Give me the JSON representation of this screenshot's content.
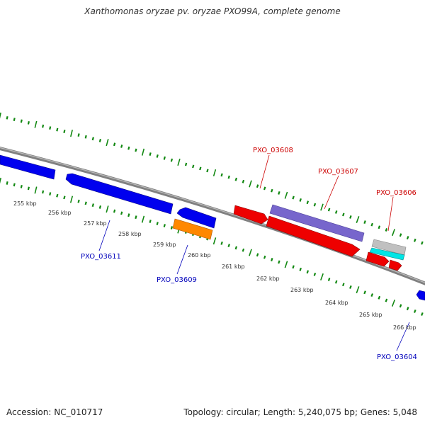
{
  "header": {
    "title": "Xanthomonas oryzae pv. oryzae PXO99A, complete genome"
  },
  "footer": {
    "accession": "Accession: NC_010717",
    "topology": "Topology: circular; Length: 5,240,075 bp; Genes: 5,048"
  },
  "colors": {
    "backbone": "#808080",
    "tick_green": "#118811",
    "ruler_text": "#333333",
    "forward_label": "#cc0000",
    "reverse_label": "#0000bb",
    "gene_blue": "#0000ee",
    "gene_red": "#ee0000",
    "gene_orange": "#ff8800",
    "gene_purple": "#7766cc",
    "gene_cyan": "#00e5e5",
    "gene_gray": "#c0c0c0"
  },
  "ruler": {
    "labels": [
      "255 kbp",
      "256 kbp",
      "257 kbp",
      "258 kbp",
      "259 kbp",
      "260 kbp",
      "261 kbp",
      "262 kbp",
      "263 kbp",
      "264 kbp",
      "265 kbp",
      "266 kbp"
    ]
  },
  "gene_labels": [
    {
      "id": "pxo-03608",
      "text": "PXO_03608",
      "strand": "forward"
    },
    {
      "id": "pxo-03607",
      "text": "PXO_03607",
      "strand": "forward"
    },
    {
      "id": "pxo-03606",
      "text": "PXO_03606",
      "strand": "forward"
    },
    {
      "id": "pxo-03611",
      "text": "PXO_03611",
      "strand": "reverse"
    },
    {
      "id": "pxo-03609",
      "text": "PXO_03609",
      "strand": "reverse"
    },
    {
      "id": "pxo-03604",
      "text": "PXO_03604",
      "strand": "reverse"
    }
  ]
}
